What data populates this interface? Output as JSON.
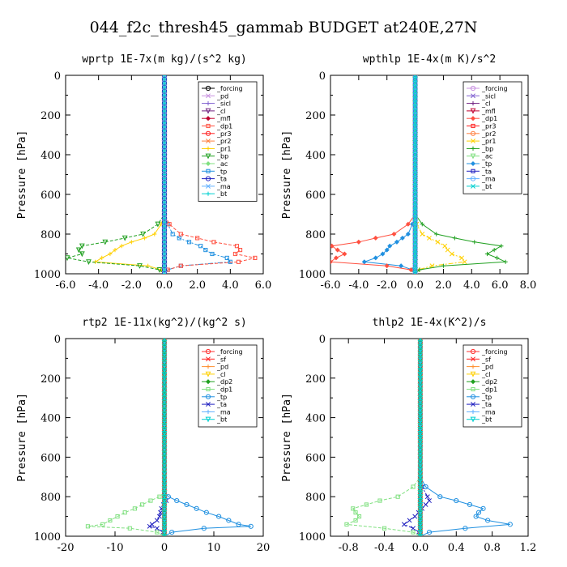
{
  "figure": {
    "title": "044_f2c_thresh45_gammab  BUDGET at240E,27N"
  },
  "chart_data": [
    {
      "type": "line",
      "title": "wprtp  1E-7x(m kg)/(s^2 kg)",
      "ylabel": "Pressure [hPa]",
      "xlim": [
        -6,
        6
      ],
      "ylim": [
        1000,
        0
      ],
      "xticks": [
        -6,
        -4,
        -2,
        0,
        2,
        4,
        6
      ],
      "xtick_labels": [
        "-6.0",
        "-4.0",
        "-2.0",
        "0.0",
        "2.0",
        "4.0",
        "6.0"
      ],
      "yticks": [
        0,
        200,
        400,
        600,
        800,
        1000
      ],
      "ytick_labels": [
        "0",
        "200",
        "400",
        "600",
        "800",
        "1000"
      ],
      "legend_position": "top-right",
      "p": [
        700,
        750,
        800,
        820,
        840,
        860,
        880,
        900,
        920,
        940,
        960,
        980,
        1000
      ],
      "series": [
        {
          "name": "_forcing",
          "color": "#000000",
          "values": [
            0,
            0,
            0,
            0,
            0,
            0,
            0,
            0,
            0,
            0,
            0,
            0,
            0
          ]
        },
        {
          "name": "_pd",
          "color": "#c890e0",
          "values": [
            0,
            0,
            0,
            0,
            0,
            0,
            0,
            0,
            0,
            0,
            0,
            0,
            0
          ]
        },
        {
          "name": "_sicl",
          "color": "#8060d0",
          "values": [
            0,
            0,
            0,
            0,
            0,
            0,
            0,
            0,
            0,
            0,
            0,
            0,
            0
          ]
        },
        {
          "name": "_cl",
          "color": "#702080",
          "values": [
            0,
            0,
            0,
            0,
            0,
            0,
            0,
            0,
            0,
            0,
            0,
            0,
            0
          ]
        },
        {
          "name": "_mfl",
          "color": "#c00030",
          "values": [
            0,
            0,
            0,
            0,
            0,
            0,
            0,
            0,
            0,
            0,
            0,
            0,
            0
          ]
        },
        {
          "name": "_dp1",
          "color": "#ff5040",
          "values": [
            0,
            0.3,
            1.0,
            2.0,
            3.0,
            4.4,
            4.6,
            4.3,
            5.5,
            4.5,
            1.0,
            0.2,
            0
          ]
        },
        {
          "name": "_pr3",
          "color": "#ff2020",
          "values": [
            0,
            0,
            0,
            0,
            0,
            0,
            0,
            0,
            0,
            0,
            0,
            0,
            0
          ]
        },
        {
          "name": "_pr2",
          "color": "#ff8040",
          "values": [
            0,
            0,
            0,
            0,
            0,
            0,
            0,
            0,
            0,
            0,
            0,
            0,
            0
          ]
        },
        {
          "name": "_pr1",
          "color": "#ffd000",
          "values": [
            0,
            -0.2,
            -0.6,
            -1.2,
            -2.0,
            -2.6,
            -3.0,
            -3.3,
            -3.8,
            -4.2,
            -1.0,
            -0.2,
            0
          ]
        },
        {
          "name": "_bp",
          "color": "#20a020",
          "values": [
            0,
            -0.4,
            -1.3,
            -2.4,
            -3.6,
            -5.0,
            -5.2,
            -5.0,
            -5.9,
            -4.6,
            -1.5,
            -0.3,
            0
          ]
        },
        {
          "name": "_ac",
          "color": "#80e080",
          "values": [
            0,
            0,
            0,
            0,
            0,
            0,
            0,
            0,
            0,
            0,
            0,
            0,
            0
          ]
        },
        {
          "name": "_tp",
          "color": "#2090e0",
          "values": [
            0,
            0.2,
            0.5,
            0.9,
            1.5,
            2.2,
            2.5,
            2.9,
            3.8,
            4.0,
            1.0,
            0.2,
            0
          ]
        },
        {
          "name": "_ta",
          "color": "#2020c0",
          "values": [
            0,
            0,
            0,
            0,
            0,
            0,
            0,
            0,
            0,
            0,
            0,
            0,
            0
          ]
        },
        {
          "name": "_ma",
          "color": "#60b0ff",
          "values": [
            0,
            0,
            0,
            0,
            0,
            0,
            0,
            0,
            0,
            0,
            0,
            0,
            0
          ]
        },
        {
          "name": "_bt",
          "color": "#00d0d0",
          "values": [
            0,
            0,
            0,
            0,
            0,
            0,
            0,
            0,
            0,
            0,
            0,
            0,
            0
          ]
        }
      ]
    },
    {
      "type": "line",
      "title": "wpthlp  1E-4x(m K)/s^2",
      "ylabel": "Pressure [hPa]",
      "xlim": [
        -6,
        8
      ],
      "ylim": [
        1000,
        0
      ],
      "xticks": [
        -6,
        -4,
        -2,
        0,
        2,
        4,
        6,
        8
      ],
      "xtick_labels": [
        "-6.0",
        "-4.0",
        "-2.0",
        "0.0",
        "2.0",
        "4.0",
        "6.0",
        "8.0"
      ],
      "yticks": [
        0,
        200,
        400,
        600,
        800,
        1000
      ],
      "ytick_labels": [
        "0",
        "200",
        "400",
        "600",
        "800",
        "1000"
      ],
      "legend_position": "top-right",
      "p": [
        700,
        750,
        800,
        820,
        840,
        860,
        880,
        900,
        920,
        940,
        960,
        980,
        1000
      ],
      "series": [
        {
          "name": "_forcing",
          "color": "#c890e0",
          "values": [
            0,
            0,
            0,
            0,
            0,
            0,
            0,
            0,
            0,
            0,
            0,
            0,
            0
          ]
        },
        {
          "name": "_sicl",
          "color": "#8060d0",
          "values": [
            0,
            0,
            0,
            0,
            0,
            0,
            0,
            0,
            0,
            0,
            0,
            0,
            0
          ]
        },
        {
          "name": "_cl",
          "color": "#702080",
          "values": [
            0,
            0,
            0,
            0,
            0,
            0,
            0,
            0,
            0,
            0,
            0,
            0,
            0
          ]
        },
        {
          "name": "_mfl",
          "color": "#c00030",
          "values": [
            0,
            0,
            0,
            0,
            0,
            0,
            0,
            0,
            0,
            0,
            0,
            0,
            0
          ]
        },
        {
          "name": "_dp1",
          "color": "#ff5040",
          "values": [
            0,
            -0.5,
            -1.5,
            -2.8,
            -4.0,
            -5.9,
            -5.5,
            -5.0,
            -5.6,
            -6.0,
            -2.0,
            -0.3,
            0
          ]
        },
        {
          "name": "_pr3",
          "color": "#ff2020",
          "values": [
            0,
            0,
            0,
            0,
            0,
            0,
            0,
            0,
            0,
            0,
            0,
            0,
            0
          ]
        },
        {
          "name": "_pr2",
          "color": "#ff8040",
          "values": [
            0,
            0,
            0,
            0,
            0,
            0,
            0,
            0,
            0,
            0,
            0,
            0,
            0
          ]
        },
        {
          "name": "_pr1",
          "color": "#ffd000",
          "values": [
            0,
            0.1,
            0.5,
            1.0,
            1.6,
            2.1,
            2.3,
            2.6,
            3.3,
            3.5,
            1.2,
            0.2,
            0
          ]
        },
        {
          "name": "_bp",
          "color": "#20a020",
          "values": [
            0,
            0.5,
            1.5,
            2.8,
            4.2,
            6.1,
            5.6,
            5.1,
            5.8,
            6.4,
            2.0,
            0.3,
            0
          ]
        },
        {
          "name": "_ac",
          "color": "#80e080",
          "values": [
            0,
            0,
            0,
            0,
            0,
            0,
            0,
            0,
            0,
            0,
            0,
            0,
            0
          ]
        },
        {
          "name": "_tp",
          "color": "#2090e0",
          "values": [
            0,
            -0.2,
            -0.5,
            -0.9,
            -1.3,
            -1.8,
            -2.0,
            -2.3,
            -2.8,
            -3.6,
            -1.0,
            -0.2,
            0
          ]
        },
        {
          "name": "_ta",
          "color": "#2020c0",
          "values": [
            0,
            0,
            0,
            0,
            0,
            0,
            0,
            0,
            0,
            0,
            0,
            0,
            0
          ]
        },
        {
          "name": "_ma",
          "color": "#60b0ff",
          "values": [
            0,
            0,
            0,
            0,
            0,
            0,
            0,
            0,
            0,
            0,
            0,
            0,
            0
          ]
        },
        {
          "name": "_bt",
          "color": "#00d0d0",
          "values": [
            0,
            0,
            0,
            0,
            0,
            0,
            0,
            0,
            0,
            0,
            0,
            0,
            0
          ]
        }
      ]
    },
    {
      "type": "line",
      "title": "rtp2  1E-11x(kg^2)/(kg^2 s)",
      "ylabel": "Pressure [hPa]",
      "xlim": [
        -20,
        20
      ],
      "ylim": [
        1000,
        0
      ],
      "xticks": [
        -20,
        -10,
        0,
        10,
        20
      ],
      "xtick_labels": [
        "-20",
        "-10",
        "0",
        "10",
        "20"
      ],
      "yticks": [
        0,
        200,
        400,
        600,
        800,
        1000
      ],
      "ytick_labels": [
        "0",
        "200",
        "400",
        "600",
        "800",
        "1000"
      ],
      "legend_position": "top-right",
      "p": [
        780,
        800,
        820,
        840,
        860,
        880,
        900,
        920,
        940,
        950,
        960,
        980,
        1000
      ],
      "series": [
        {
          "name": "_forcing",
          "color": "#ff3030",
          "values": [
            0,
            0,
            0,
            0,
            0,
            0,
            0,
            0,
            0,
            0,
            0,
            0,
            0
          ]
        },
        {
          "name": "_sf",
          "color": "#ff2020",
          "values": [
            0,
            0,
            0,
            0,
            0,
            0,
            0,
            0,
            0,
            0,
            0,
            0,
            0
          ]
        },
        {
          "name": "_pd",
          "color": "#ff9030",
          "values": [
            0,
            0,
            0,
            0,
            0,
            0,
            0,
            0,
            0,
            0,
            0,
            0,
            0
          ]
        },
        {
          "name": "_cl",
          "color": "#ffd000",
          "values": [
            0,
            0,
            0,
            0,
            0,
            0,
            0,
            0,
            0,
            0,
            0,
            0,
            0
          ]
        },
        {
          "name": "_dp2",
          "color": "#20a020",
          "values": [
            0,
            0,
            0,
            0,
            0,
            0,
            0,
            0,
            0,
            0,
            0,
            0,
            0
          ]
        },
        {
          "name": "_dp1",
          "color": "#80e080",
          "values": [
            0,
            -1.0,
            -2.8,
            -4.5,
            -6.0,
            -8.0,
            -9.5,
            -11.0,
            -12.5,
            -15.5,
            -7.0,
            -1.5,
            0
          ]
        },
        {
          "name": "_tp",
          "color": "#2090e0",
          "values": [
            0,
            0.8,
            2.5,
            4.5,
            6.5,
            8.5,
            11.0,
            13.0,
            15.0,
            17.5,
            8.0,
            1.5,
            0
          ]
        },
        {
          "name": "_ta",
          "color": "#2020c0",
          "values": [
            0,
            0.2,
            0.4,
            -0.2,
            -0.6,
            -0.8,
            -1.0,
            -1.5,
            -2.5,
            -3.0,
            -1.5,
            -0.3,
            0
          ]
        },
        {
          "name": "_ma",
          "color": "#60b0ff",
          "values": [
            0,
            0,
            0,
            0,
            0,
            0,
            0,
            0,
            0,
            0,
            0,
            0,
            0
          ]
        },
        {
          "name": "_bt",
          "color": "#00d0d0",
          "values": [
            0,
            0,
            0,
            0,
            0,
            0,
            0,
            0,
            0,
            0,
            0,
            0,
            0
          ]
        }
      ]
    },
    {
      "type": "line",
      "title": "thlp2  1E-4x(K^2)/s",
      "ylabel": "Pressure [hPa]",
      "xlim": [
        -1.0,
        1.2
      ],
      "ylim": [
        1000,
        0
      ],
      "xticks": [
        -0.8,
        -0.4,
        0.0,
        0.4,
        0.8,
        1.2
      ],
      "xtick_labels": [
        "-0.8",
        "-0.4",
        "0.0",
        "0.4",
        "0.8",
        "1.2"
      ],
      "yticks": [
        0,
        200,
        400,
        600,
        800,
        1000
      ],
      "ytick_labels": [
        "0",
        "200",
        "400",
        "600",
        "800",
        "1000"
      ],
      "legend_position": "top-right",
      "p": [
        700,
        750,
        800,
        820,
        840,
        860,
        880,
        900,
        920,
        940,
        960,
        980,
        1000
      ],
      "series": [
        {
          "name": "_forcing",
          "color": "#ff3030",
          "values": [
            0,
            0,
            0,
            0,
            0,
            0,
            0,
            0,
            0,
            0,
            0,
            0,
            0
          ]
        },
        {
          "name": "_sf",
          "color": "#ff2020",
          "values": [
            0,
            0,
            0,
            0,
            0,
            0,
            0,
            0,
            0,
            0,
            0,
            0,
            0
          ]
        },
        {
          "name": "_pd",
          "color": "#ff9030",
          "values": [
            0,
            0,
            0,
            0,
            0,
            0,
            0,
            0,
            0,
            0,
            0,
            0,
            0
          ]
        },
        {
          "name": "_cl",
          "color": "#ffd000",
          "values": [
            0,
            0,
            0,
            0,
            0,
            0,
            0,
            0,
            0,
            0,
            0,
            0,
            0
          ]
        },
        {
          "name": "_dp2",
          "color": "#20a020",
          "values": [
            0,
            0,
            0,
            0,
            0,
            0,
            0,
            0,
            0,
            0,
            0,
            0,
            0
          ]
        },
        {
          "name": "_dp1",
          "color": "#80e080",
          "values": [
            0,
            -0.08,
            -0.25,
            -0.45,
            -0.6,
            -0.75,
            -0.72,
            -0.68,
            -0.72,
            -0.82,
            -0.4,
            -0.08,
            0
          ]
        },
        {
          "name": "_tp",
          "color": "#2090e0",
          "values": [
            0,
            0.06,
            0.22,
            0.4,
            0.55,
            0.7,
            0.65,
            0.62,
            0.75,
            1.0,
            0.5,
            0.1,
            0
          ]
        },
        {
          "name": "_ta",
          "color": "#2020c0",
          "values": [
            0,
            0.02,
            0.08,
            0.1,
            0.06,
            0.02,
            -0.02,
            -0.06,
            -0.12,
            -0.18,
            -0.08,
            -0.02,
            0
          ]
        },
        {
          "name": "_ma",
          "color": "#60b0ff",
          "values": [
            0,
            0,
            0,
            0,
            0,
            0,
            0,
            0,
            0,
            0,
            0,
            0,
            0
          ]
        },
        {
          "name": "_bt",
          "color": "#00d0d0",
          "values": [
            0,
            0,
            0,
            0,
            0,
            0,
            0,
            0,
            0,
            0,
            0,
            0,
            0
          ]
        }
      ]
    }
  ]
}
